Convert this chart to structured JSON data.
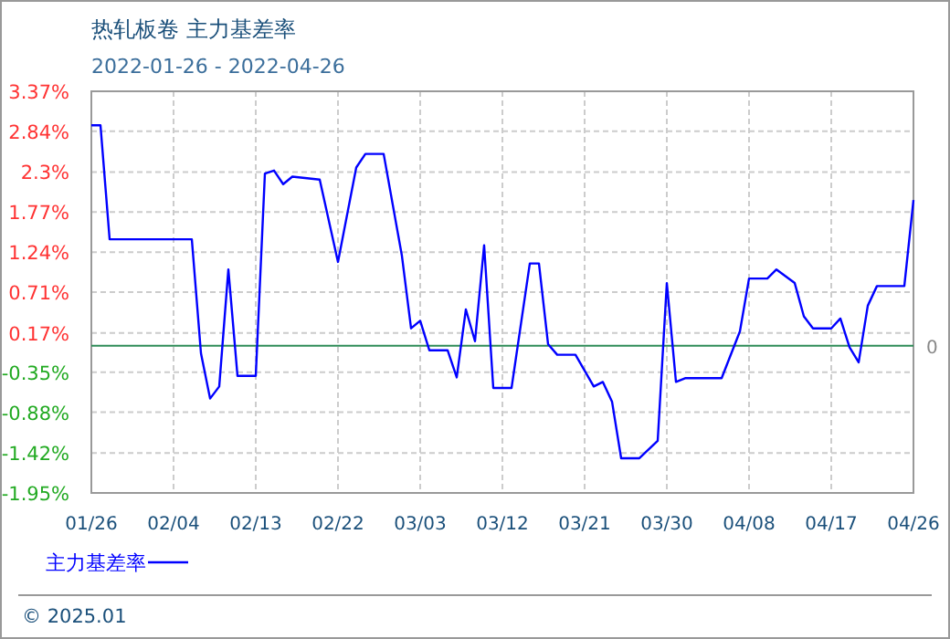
{
  "chart_data": {
    "type": "line",
    "title": "热轧板卷  主力基差率",
    "subtitle": "2022-01-26 - 2022-04-26",
    "x": [
      "--01-26",
      "--01-27",
      "--01-28",
      "--02-06",
      "--02-07",
      "--02-08",
      "--02-09",
      "--02-10",
      "--02-11",
      "--02-13",
      "--02-14",
      "--02-15",
      "--02-16",
      "--02-17",
      "--02-20",
      "--02-22",
      "--02-24",
      "--02-25",
      "--02-27",
      "--03-01",
      "--03-02",
      "--03-03",
      "--03-04",
      "--03-06",
      "--03-07",
      "--03-08",
      "--03-09",
      "--03-10",
      "--03-11",
      "--03-13",
      "--03-15",
      "--03-16",
      "--03-17",
      "--03-18",
      "--03-20",
      "--03-22",
      "--03-23",
      "--03-24",
      "--03-25",
      "--03-27",
      "--03-29",
      "--03-30",
      "--03-31",
      "--04-01",
      "--04-05",
      "--04-07",
      "--04-08",
      "--04-10",
      "--04-11",
      "--04-13",
      "--04-14",
      "--04-15",
      "--04-17",
      "--04-18",
      "--04-19",
      "--04-20",
      "--04-21",
      "--04-22",
      "--04-25",
      "--04-26"
    ],
    "series": [
      {
        "name": "主力基差率",
        "color": "#0000ff",
        "values": [
          2.92,
          2.92,
          1.41,
          1.41,
          -0.1,
          -0.7,
          -0.54,
          1.01,
          -0.4,
          -0.4,
          2.28,
          2.32,
          2.14,
          2.24,
          2.2,
          1.11,
          2.36,
          2.54,
          2.54,
          1.19,
          0.23,
          0.33,
          -0.06,
          -0.06,
          -0.42,
          0.48,
          0.06,
          1.33,
          -0.56,
          -0.56,
          1.09,
          1.09,
          0.02,
          -0.12,
          -0.12,
          -0.54,
          -0.48,
          -0.74,
          -1.49,
          -1.49,
          -1.26,
          0.83,
          -0.48,
          -0.43,
          -0.43,
          0.19,
          0.89,
          0.89,
          1.01,
          0.83,
          0.39,
          0.23,
          0.23,
          0.36,
          -0.02,
          -0.22,
          0.53,
          0.79,
          0.79,
          1.93
        ]
      }
    ],
    "xlim": [
      "--01-26",
      "--04-26"
    ],
    "xticks": [
      {
        "value": "--01-26",
        "label": "01/26"
      },
      {
        "value": "--02-04",
        "label": "02/04"
      },
      {
        "value": "--02-13",
        "label": "02/13"
      },
      {
        "value": "--02-22",
        "label": "02/22"
      },
      {
        "value": "--03-03",
        "label": "03/03"
      },
      {
        "value": "--03-12",
        "label": "03/12"
      },
      {
        "value": "--03-21",
        "label": "03/21"
      },
      {
        "value": "--03-30",
        "label": "03/30"
      },
      {
        "value": "--04-08",
        "label": "04/08"
      },
      {
        "value": "--04-17",
        "label": "04/17"
      },
      {
        "value": "--04-26",
        "label": "04/26"
      }
    ],
    "ylim": [
      -1.95,
      3.37
    ],
    "yticks": [
      {
        "value": -1.95,
        "label": "-1.95%"
      },
      {
        "value": -1.42,
        "label": "-1.42%"
      },
      {
        "value": -0.88,
        "label": "-0.88%"
      },
      {
        "value": -0.35,
        "label": "-0.35%"
      },
      {
        "value": 0.17,
        "label": "0.17%"
      },
      {
        "value": 0.71,
        "label": "0.71%"
      },
      {
        "value": 1.24,
        "label": "1.24%"
      },
      {
        "value": 1.77,
        "label": "1.77%"
      },
      {
        "value": 2.3,
        "label": "2.3%"
      },
      {
        "value": 2.84,
        "label": "2.84%"
      },
      {
        "value": 3.37,
        "label": "3.37%"
      }
    ],
    "ref_lines": [
      {
        "axis": "y",
        "value": 0,
        "label": "0",
        "color": "#2e8b57"
      }
    ],
    "grid": true,
    "legend": "bottom",
    "annotations": [
      "© 2025.01"
    ]
  }
}
